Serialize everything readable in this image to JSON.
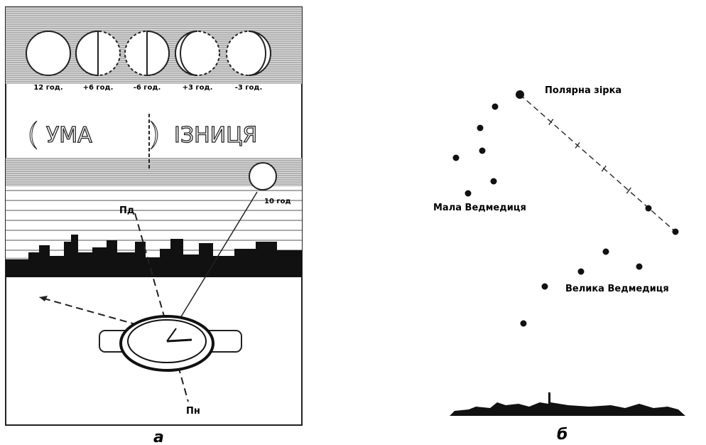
{
  "panel_a": {
    "moon_labels": [
      "12 год.",
      "+6 год.",
      "-6 год.",
      "+3 год.",
      "-3 год."
    ],
    "word_left": "УМА",
    "word_right": "ІЗНИЦЯ",
    "moon_time": "10 год",
    "south": "Пд",
    "north": "Пн",
    "caption": "а"
  },
  "panel_b": {
    "polaris": "Полярна зірка",
    "little_dipper": "Мала Ведмедиця",
    "big_dipper": "Велика Ведмедиця",
    "caption": "б"
  }
}
